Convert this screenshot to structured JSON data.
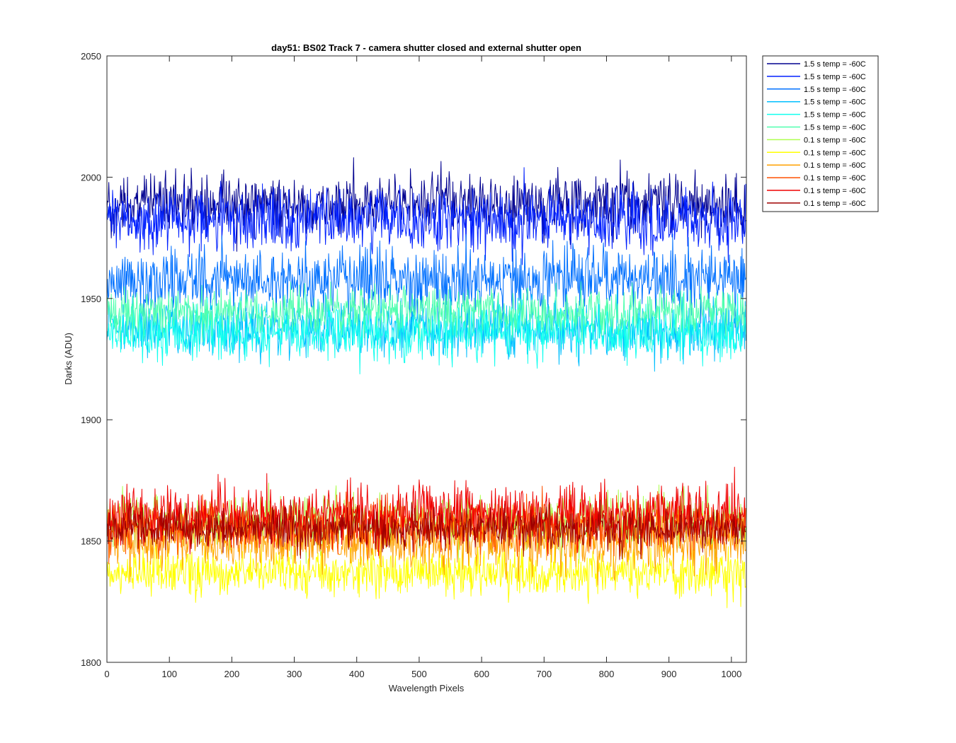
{
  "chart_data": {
    "type": "line",
    "title": "day51: BS02  Track 7 - camera shutter closed and external shutter open",
    "xlabel": "Wavelength Pixels",
    "ylabel": "Darks (ADU)",
    "xlim": [
      0,
      1024
    ],
    "ylim": [
      1800,
      2050
    ],
    "xticks": [
      0,
      100,
      200,
      300,
      400,
      500,
      600,
      700,
      800,
      900,
      1000
    ],
    "yticks": [
      1800,
      1850,
      1900,
      1950,
      2000,
      2050
    ],
    "grid": false,
    "legend_position": "outside-top-right",
    "n_points": 1024,
    "series": [
      {
        "name": "1.5 s temp = -60C",
        "color": "#00008f",
        "mean": 1989,
        "noise": 10,
        "min": 1950,
        "max": 2032
      },
      {
        "name": "1.5 s temp = -60C",
        "color": "#0020ff",
        "mean": 1982,
        "noise": 11,
        "min": 1945,
        "max": 2020
      },
      {
        "name": "1.5 s temp = -60C",
        "color": "#0070ff",
        "mean": 1958,
        "noise": 11,
        "min": 1920,
        "max": 1998
      },
      {
        "name": "1.5 s temp = -60C",
        "color": "#00bfff",
        "mean": 1937,
        "noise": 10,
        "min": 1896,
        "max": 1975
      },
      {
        "name": "1.5 s temp = -60C",
        "color": "#10ffef",
        "mean": 1936,
        "noise": 9,
        "min": 1905,
        "max": 1968
      },
      {
        "name": "1.5 s temp = -60C",
        "color": "#50ffaf",
        "mean": 1945,
        "noise": 8,
        "min": 1918,
        "max": 1975
      },
      {
        "name": "0.1 s temp = -60C",
        "color": "#afff50",
        "mean": 1858,
        "noise": 9,
        "min": 1830,
        "max": 1892
      },
      {
        "name": "0.1 s temp = -60C",
        "color": "#ffff00",
        "mean": 1837,
        "noise": 8,
        "min": 1815,
        "max": 1862
      },
      {
        "name": "0.1 s temp = -60C",
        "color": "#ffa000",
        "mean": 1850,
        "noise": 10,
        "min": 1822,
        "max": 1895
      },
      {
        "name": "0.1 s temp = -60C",
        "color": "#ff5000",
        "mean": 1856,
        "noise": 9,
        "min": 1830,
        "max": 1900
      },
      {
        "name": "0.1 s temp = -60C",
        "color": "#ef0000",
        "mean": 1861,
        "noise": 10,
        "min": 1832,
        "max": 1907
      },
      {
        "name": "0.1 s temp = -60C",
        "color": "#9f0000",
        "mean": 1855,
        "noise": 7,
        "min": 1835,
        "max": 1880
      }
    ]
  }
}
